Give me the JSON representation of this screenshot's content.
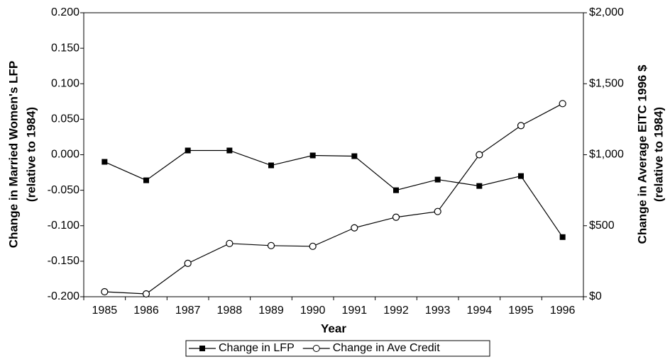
{
  "chart_data": {
    "type": "line",
    "xlabel": "Year",
    "ylabel": [
      "Change in Married Women's LFP",
      "(relative to 1984)"
    ],
    "y2label": [
      "Change in Average EITC 1996 $",
      "(relative to 1984)"
    ],
    "categories": [
      "1985",
      "1986",
      "1987",
      "1988",
      "1989",
      "1990",
      "1991",
      "1992",
      "1993",
      "1994",
      "1995",
      "1996"
    ],
    "series": [
      {
        "name": "Change in LFP",
        "color": "#000000",
        "marker": "square",
        "values": [
          -0.01,
          -0.036,
          0.006,
          0.006,
          -0.015,
          -0.001,
          -0.002,
          -0.05,
          -0.035,
          -0.044,
          -0.03,
          -0.116
        ]
      },
      {
        "name": "Change in Ave Credit",
        "color": "#000000",
        "marker": "circle",
        "axis": "y2",
        "values": [
          35,
          20,
          235,
          375,
          360,
          355,
          485,
          560,
          600,
          1000,
          1205,
          1360
        ]
      }
    ],
    "ylim": [
      -0.2,
      0.2
    ],
    "yticks": [
      {
        "value": -0.2,
        "label": "-0.200"
      },
      {
        "value": -0.15,
        "label": "-0.150"
      },
      {
        "value": -0.1,
        "label": "-0.100"
      },
      {
        "value": -0.05,
        "label": "-0.050"
      },
      {
        "value": 0,
        "label": "0.000"
      },
      {
        "value": 0.05,
        "label": "0.050"
      },
      {
        "value": 0.1,
        "label": "0.100"
      },
      {
        "value": 0.15,
        "label": "0.150"
      },
      {
        "value": 0.2,
        "label": "0.200"
      }
    ],
    "y2lim": [
      0,
      2000
    ],
    "y2ticks": [
      {
        "value": 0,
        "label": "$0"
      },
      {
        "value": 500,
        "label": "$500"
      },
      {
        "value": 1000,
        "label": "$1,000"
      },
      {
        "value": 1500,
        "label": "$1,500"
      },
      {
        "value": 2000,
        "label": "$2,000"
      }
    ],
    "grid": false,
    "legend": "bottom"
  }
}
